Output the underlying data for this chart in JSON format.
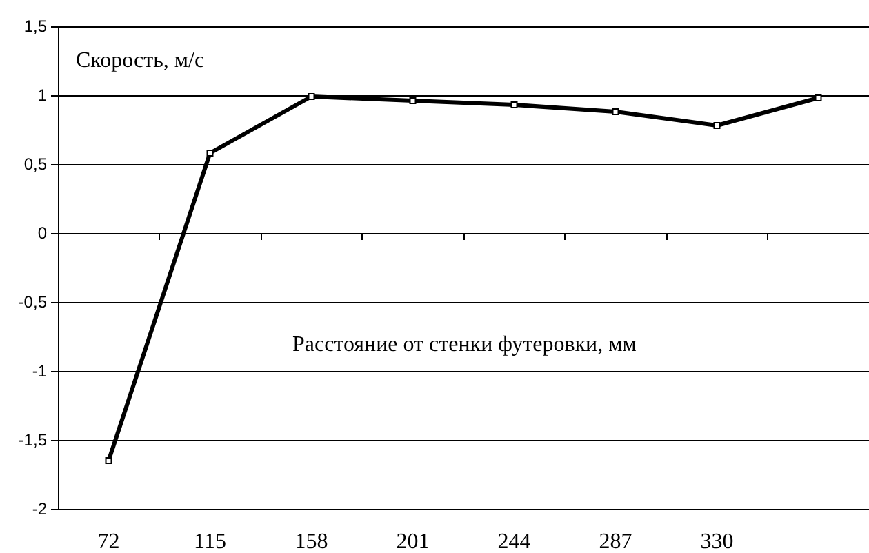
{
  "chart_data": {
    "type": "line",
    "ylabel": "Скорость, м/с",
    "xlabel": "Расстояние от стенки футеровки, мм",
    "categories": [
      "72",
      "115",
      "158",
      "201",
      "244",
      "287",
      "330",
      null
    ],
    "series": [
      {
        "color": "#000000",
        "values": [
          -1.65,
          0.58,
          0.99,
          0.96,
          0.93,
          0.88,
          0.78,
          0.98
        ]
      }
    ],
    "ylim": [
      -2,
      1.5
    ],
    "yticks": [
      {
        "value": -2,
        "label": "-2"
      },
      {
        "value": -1.5,
        "label": "-1,5"
      },
      {
        "value": -1,
        "label": "-1"
      },
      {
        "value": -0.5,
        "label": "-0,5"
      },
      {
        "value": 0,
        "label": "0"
      },
      {
        "value": 0.5,
        "label": "0,5"
      },
      {
        "value": 1,
        "label": "1"
      },
      {
        "value": 1.5,
        "label": "1,5"
      }
    ],
    "grid": "y",
    "marker": "square",
    "line_style": "solid"
  }
}
